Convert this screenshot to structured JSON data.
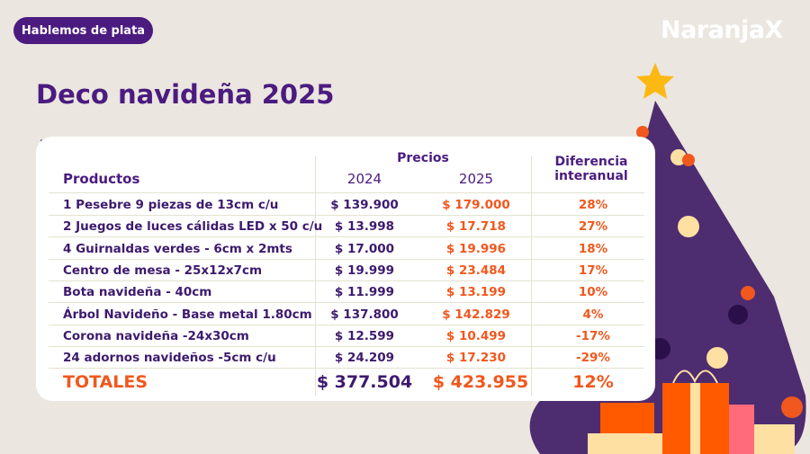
{
  "badge": "Hablemos de plata",
  "logo": "NaranjaX",
  "title": "Deco navideña 2025",
  "table": {
    "col_products": "Productos",
    "col_prices": "Precios",
    "col_2024": "2024",
    "col_2025": "2025",
    "col_diff_1": "Diferencia",
    "col_diff_2": "interanual",
    "rows": [
      {
        "product": "1 Pesebre 9 piezas de 13cm c/u",
        "p2024": "$ 139.900",
        "p2025": "$ 179.000",
        "diff": "28%"
      },
      {
        "product": "2 Juegos de luces cálidas LED x 50 c/u",
        "p2024": "$ 13.998",
        "p2025": "$ 17.718",
        "diff": "27%"
      },
      {
        "product": "4 Guirnaldas verdes - 6cm x 2mts",
        "p2024": "$ 17.000",
        "p2025": "$ 19.996",
        "diff": "18%"
      },
      {
        "product": "Centro de mesa - 25x12x7cm",
        "p2024": "$ 19.999",
        "p2025": "$ 23.484",
        "diff": "17%"
      },
      {
        "product": "Bota navideña - 40cm",
        "p2024": "$ 11.999",
        "p2025": "$ 13.199",
        "diff": "10%"
      },
      {
        "product": "Árbol Navideño - Base metal 1.80cm",
        "p2024": "$ 137.800",
        "p2025": "$ 142.829",
        "diff": "4%"
      },
      {
        "product": "Corona navideña -24x30cm",
        "p2024": "$ 12.599",
        "p2025": "$ 10.499",
        "diff": "-17%"
      },
      {
        "product": "24 adornos navideños -5cm c/u",
        "p2024": "$ 24.209",
        "p2025": "$ 17.230",
        "diff": "-29%"
      }
    ],
    "totals": {
      "label": "TOTALES",
      "p2024": "$ 377.504",
      "p2025": "$ 423.955",
      "diff": "12%"
    }
  },
  "colors": {
    "purple": "#4b1b80",
    "orange": "#f0581e",
    "background": "#ebe6df",
    "tree": "#4e2c70"
  }
}
